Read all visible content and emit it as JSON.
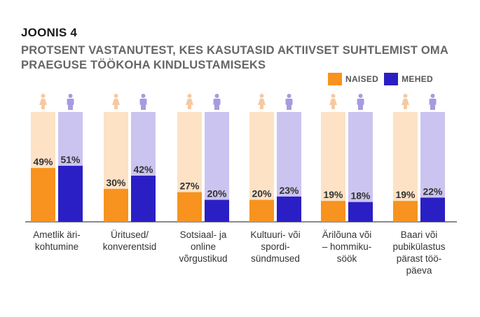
{
  "figure_label": "JOONIS 4",
  "title": "PROTSENT VASTANUTEST, KES KASUTASID AKTIIVSET SUHTLEMIST OMA PRAEGUSE TÖÖKOHA KINDLUSTAMISEKS",
  "colors": {
    "women": "#f7931e",
    "women_bg": "#fde2c5",
    "women_icon": "#f6c9a0",
    "men": "#2a1fc4",
    "men_bg": "#cbc4f0",
    "men_icon": "#a79be0",
    "axis": "#444444"
  },
  "chart_data": {
    "type": "bar",
    "title": "PROTSENT VASTANUTEST, KES KASUTASID AKTIIVSET SUHTLEMIST OMA PRAEGUSE TÖÖKOHA KINDLUSTAMISEKS",
    "categories": [
      "Ametlik äri-\nkohtumine",
      "Üritused/\nkonverentsid",
      "Sotsiaal- ja\nonline\nvõrgustikud",
      "Kultuuri- või\nspordi-\nsündmused",
      "Ärilõuna või\n– hommiku-\nsöök",
      "Baari või\npubikülastus\npärast töö-\npäeva"
    ],
    "series": [
      {
        "name": "NAISED",
        "values": [
          49,
          30,
          27,
          20,
          19,
          19
        ],
        "labels": [
          "49%",
          "30%",
          "27%",
          "20%",
          "19%",
          "19%"
        ]
      },
      {
        "name": "MEHED",
        "values": [
          51,
          42,
          20,
          23,
          18,
          22
        ],
        "labels": [
          "51%",
          "42%",
          "20%",
          "23%",
          "18%",
          "22%"
        ]
      }
    ],
    "ylim": [
      0,
      100
    ],
    "legend": "top-right",
    "grid": false
  }
}
